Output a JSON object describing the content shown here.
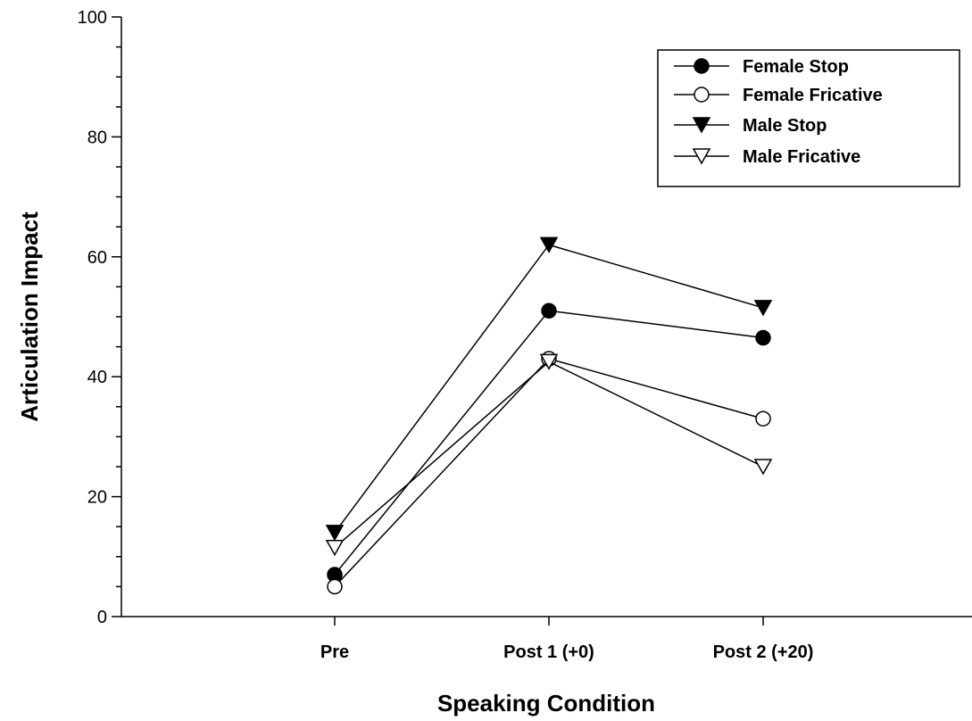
{
  "chart_data": {
    "type": "line",
    "title": "",
    "xlabel": "Speaking Condition",
    "ylabel": "Articulation Impact",
    "categories": [
      "Pre",
      "Post 1 (+0)",
      "Post 2 (+20)"
    ],
    "ylim": [
      0,
      100
    ],
    "yticks": [
      "0",
      "20",
      "40",
      "60",
      "80",
      "100"
    ],
    "grid": false,
    "legend_position": "top-right",
    "series": [
      {
        "name": "Female Stop",
        "marker": "circle-filled",
        "values": [
          7,
          51,
          46.5
        ]
      },
      {
        "name": "Female Fricative",
        "marker": "circle-open",
        "values": [
          5,
          43,
          33
        ]
      },
      {
        "name": "Male Stop",
        "marker": "triangle-down-filled",
        "values": [
          14,
          62,
          51.5
        ]
      },
      {
        "name": "Male Fricative",
        "marker": "triangle-down-open",
        "values": [
          11.5,
          42.5,
          25
        ]
      }
    ],
    "colors": {
      "line": "#000000",
      "fill": "#000000",
      "open_fill": "#ffffff"
    }
  }
}
